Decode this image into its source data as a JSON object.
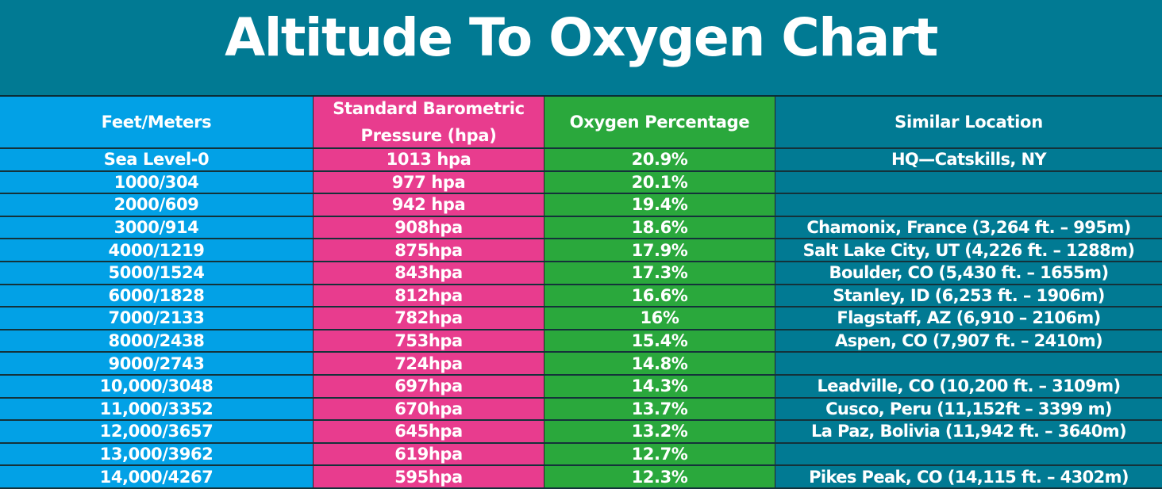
{
  "title": "Altitude To Oxygen Chart",
  "colors": {
    "background": "#017a93",
    "col_feet": "#02a1e6",
    "col_pressure": "#e83c8e",
    "col_oxygen": "#2aa83c",
    "col_location": "#017a93",
    "text": "#ffffff"
  },
  "table": {
    "headers": {
      "feet_meters": "Feet/Meters",
      "pressure_line1": "Standard Barometric",
      "pressure_line2": "Pressure (hpa)",
      "oxygen": "Oxygen Percentage",
      "location": "Similar Location"
    },
    "rows": [
      {
        "alt": "Sea Level-0",
        "pressure": "1013 hpa",
        "oxygen": "20.9%",
        "location": "HQ—Catskills, NY"
      },
      {
        "alt": "1000/304",
        "pressure": "977 hpa",
        "oxygen": "20.1%",
        "location": ""
      },
      {
        "alt": "2000/609",
        "pressure": "942 hpa",
        "oxygen": "19.4%",
        "location": ""
      },
      {
        "alt": "3000/914",
        "pressure": "908hpa",
        "oxygen": "18.6%",
        "location": "Chamonix, France (3,264 ft. – 995m)"
      },
      {
        "alt": "4000/1219",
        "pressure": "875hpa",
        "oxygen": "17.9%",
        "location": "Salt Lake City, UT (4,226 ft. – 1288m)"
      },
      {
        "alt": "5000/1524",
        "pressure": "843hpa",
        "oxygen": "17.3%",
        "location": "Boulder, CO (5,430 ft. – 1655m)"
      },
      {
        "alt": "6000/1828",
        "pressure": "812hpa",
        "oxygen": "16.6%",
        "location": "Stanley, ID (6,253 ft. – 1906m)"
      },
      {
        "alt": "7000/2133",
        "pressure": "782hpa",
        "oxygen": "16%",
        "location": "Flagstaff, AZ (6,910 – 2106m)"
      },
      {
        "alt": "8000/2438",
        "pressure": "753hpa",
        "oxygen": "15.4%",
        "location": "Aspen, CO (7,907 ft. – 2410m)"
      },
      {
        "alt": "9000/2743",
        "pressure": "724hpa",
        "oxygen": "14.8%",
        "location": ""
      },
      {
        "alt": "10,000/3048",
        "pressure": "697hpa",
        "oxygen": "14.3%",
        "location": "Leadville, CO (10,200 ft. – 3109m)"
      },
      {
        "alt": "11,000/3352",
        "pressure": "670hpa",
        "oxygen": "13.7%",
        "location": "Cusco, Peru (11,152ft – 3399 m)"
      },
      {
        "alt": "12,000/3657",
        "pressure": "645hpa",
        "oxygen": "13.2%",
        "location": "La Paz, Bolivia (11,942 ft. – 3640m)"
      },
      {
        "alt": "13,000/3962",
        "pressure": "619hpa",
        "oxygen": "12.7%",
        "location": ""
      },
      {
        "alt": "14,000/4267",
        "pressure": "595hpa",
        "oxygen": "12.3%",
        "location": "Pikes Peak, CO (14,115 ft. – 4302m)"
      }
    ]
  },
  "chart_data": {
    "type": "table",
    "title": "Altitude To Oxygen Chart",
    "columns": [
      "Feet/Meters",
      "Standard Barometric Pressure (hpa)",
      "Oxygen Percentage",
      "Similar Location"
    ],
    "rows": [
      [
        "Sea Level-0",
        "1013 hpa",
        "20.9%",
        "HQ—Catskills, NY"
      ],
      [
        "1000/304",
        "977 hpa",
        "20.1%",
        ""
      ],
      [
        "2000/609",
        "942 hpa",
        "19.4%",
        ""
      ],
      [
        "3000/914",
        "908hpa",
        "18.6%",
        "Chamonix, France (3,264 ft. – 995m)"
      ],
      [
        "4000/1219",
        "875hpa",
        "17.9%",
        "Salt Lake City, UT (4,226 ft. – 1288m)"
      ],
      [
        "5000/1524",
        "843hpa",
        "17.3%",
        "Boulder, CO (5,430 ft. – 1655m)"
      ],
      [
        "6000/1828",
        "812hpa",
        "16.6%",
        "Stanley, ID (6,253 ft. – 1906m)"
      ],
      [
        "7000/2133",
        "782hpa",
        "16%",
        "Flagstaff, AZ (6,910 – 2106m)"
      ],
      [
        "8000/2438",
        "753hpa",
        "15.4%",
        "Aspen, CO (7,907 ft. – 2410m)"
      ],
      [
        "9000/2743",
        "724hpa",
        "14.8%",
        ""
      ],
      [
        "10,000/3048",
        "697hpa",
        "14.3%",
        "Leadville, CO (10,200 ft. – 3109m)"
      ],
      [
        "11,000/3352",
        "670hpa",
        "13.7%",
        "Cusco, Peru (11,152ft – 3399 m)"
      ],
      [
        "12,000/3657",
        "645hpa",
        "13.2%",
        "La Paz, Bolivia (11,942 ft. – 3640m)"
      ],
      [
        "13,000/3962",
        "619hpa",
        "12.7%",
        ""
      ],
      [
        "14,000/4267",
        "595hpa",
        "12.3%",
        "Pikes Peak, CO (14,115 ft. – 4302m)"
      ]
    ],
    "numeric": {
      "altitude_ft": [
        0,
        1000,
        2000,
        3000,
        4000,
        5000,
        6000,
        7000,
        8000,
        9000,
        10000,
        11000,
        12000,
        13000,
        14000
      ],
      "altitude_m": [
        0,
        304,
        609,
        914,
        1219,
        1524,
        1828,
        2133,
        2438,
        2743,
        3048,
        3352,
        3657,
        3962,
        4267
      ],
      "pressure_hpa": [
        1013,
        977,
        942,
        908,
        875,
        843,
        812,
        782,
        753,
        724,
        697,
        670,
        645,
        619,
        595
      ],
      "oxygen_pct": [
        20.9,
        20.1,
        19.4,
        18.6,
        17.9,
        17.3,
        16.6,
        16,
        15.4,
        14.8,
        14.3,
        13.7,
        13.2,
        12.7,
        12.3
      ]
    }
  }
}
